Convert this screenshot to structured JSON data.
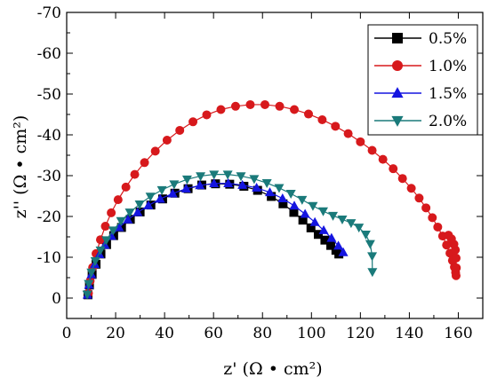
{
  "chart_data": {
    "type": "scatter",
    "xlabel": "z' (Ω • cm²)",
    "ylabel": "z'' (Ω • cm²)",
    "xlim": [
      0,
      170
    ],
    "ylim": [
      5,
      -70
    ],
    "xticks": [
      0,
      20,
      40,
      60,
      80,
      100,
      120,
      140,
      160
    ],
    "yticks": [
      0,
      -10,
      -20,
      -30,
      -40,
      -50,
      -60,
      -70
    ],
    "xtick_labels": [
      "0",
      "20",
      "40",
      "60",
      "80",
      "100",
      "120",
      "140",
      "160"
    ],
    "ytick_labels": [
      "0",
      "-10",
      "-20",
      "-30",
      "-40",
      "-50",
      "-60",
      "-70"
    ],
    "legend_position": "top-right",
    "grid": false,
    "series": [
      {
        "name": "0.5%",
        "color": "#000000",
        "marker": "square",
        "x": [
          8.7,
          9.3,
          10.4,
          12.0,
          14.0,
          16.3,
          19.2,
          22.4,
          26.0,
          30.0,
          34.4,
          39.2,
          44.2,
          49.6,
          55.2,
          60.8,
          66.6,
          72.4,
          78.0,
          83.6,
          88.4,
          92.8,
          96.5,
          99.8,
          102.8,
          105.5,
          107.9,
          110.0,
          111.2
        ],
        "y": [
          -0.8,
          -3.2,
          -5.8,
          -8.3,
          -10.8,
          -13.1,
          -15.3,
          -17.3,
          -19.3,
          -21.1,
          -22.8,
          -24.3,
          -25.7,
          -26.8,
          -27.7,
          -28.0,
          -27.9,
          -27.4,
          -26.4,
          -24.9,
          -23.1,
          -21.0,
          -19.1,
          -17.2,
          -15.6,
          -14.2,
          -12.9,
          -11.7,
          -10.8
        ]
      },
      {
        "name": "1.0%",
        "color": "#d7191c",
        "marker": "circle",
        "x": [
          8.9,
          9.6,
          10.6,
          12.0,
          13.8,
          15.8,
          18.2,
          21.0,
          24.2,
          27.8,
          31.8,
          36.2,
          41.0,
          46.2,
          51.6,
          57.2,
          63.0,
          69.0,
          75.0,
          81.0,
          87.0,
          93.0,
          98.8,
          104.4,
          109.8,
          115.0,
          120.0,
          124.8,
          129.2,
          133.4,
          137.2,
          140.8,
          144.0,
          146.8,
          149.4,
          151.6,
          153.6,
          155.2,
          156.6,
          157.6,
          158.4,
          158.9,
          159.1,
          159.2,
          159.1,
          158.8,
          158.2,
          157.2,
          156.0
        ],
        "y": [
          -1.2,
          -4.2,
          -7.5,
          -10.9,
          -14.3,
          -17.6,
          -20.9,
          -24.1,
          -27.2,
          -30.3,
          -33.2,
          -36.0,
          -38.7,
          -41.1,
          -43.2,
          -44.9,
          -46.2,
          -47.0,
          -47.4,
          -47.4,
          -47.0,
          -46.2,
          -45.1,
          -43.7,
          -42.1,
          -40.3,
          -38.3,
          -36.2,
          -34.0,
          -31.7,
          -29.3,
          -26.9,
          -24.5,
          -22.1,
          -19.7,
          -17.4,
          -15.2,
          -13.0,
          -11.0,
          -9.2,
          -7.6,
          -6.3,
          -5.5,
          -7.4,
          -9.8,
          -11.8,
          -13.2,
          -14.5,
          -15.4
        ]
      },
      {
        "name": "1.5%",
        "color": "#1515e0",
        "marker": "triangle-up",
        "x": [
          8.5,
          9.1,
          10.1,
          11.5,
          13.4,
          15.6,
          18.3,
          21.4,
          25.0,
          29.0,
          33.4,
          38.2,
          43.3,
          48.8,
          54.4,
          60.2,
          66.0,
          71.8,
          77.6,
          83.0,
          88.2,
          93.0,
          97.4,
          101.4,
          105.0,
          108.2,
          111.0,
          113.0
        ],
        "y": [
          -0.8,
          -3.2,
          -5.8,
          -8.3,
          -10.7,
          -13.0,
          -15.2,
          -17.3,
          -19.2,
          -21.0,
          -22.7,
          -24.3,
          -25.6,
          -26.8,
          -27.6,
          -28.1,
          -28.1,
          -27.7,
          -27.0,
          -25.9,
          -24.4,
          -22.6,
          -20.6,
          -18.6,
          -16.6,
          -14.7,
          -12.8,
          -11.2
        ]
      },
      {
        "name": "2.0%",
        "color": "#1a7a7a",
        "marker": "triangle-down",
        "x": [
          8.4,
          9.0,
          10.1,
          11.7,
          13.8,
          16.2,
          19.0,
          22.2,
          25.8,
          29.8,
          34.2,
          38.9,
          43.9,
          49.2,
          54.7,
          60.2,
          65.8,
          71.2,
          76.6,
          81.8,
          86.8,
          91.6,
          96.2,
          100.6,
          104.8,
          108.8,
          112.6,
          116.2,
          119.4,
          122.2,
          124.0,
          124.8,
          124.9
        ],
        "y": [
          -0.9,
          -3.5,
          -6.3,
          -9.1,
          -11.7,
          -14.2,
          -16.6,
          -18.9,
          -21.0,
          -23.0,
          -24.9,
          -26.5,
          -27.9,
          -29.1,
          -29.9,
          -30.3,
          -30.3,
          -29.9,
          -29.2,
          -28.2,
          -27.0,
          -25.6,
          -24.1,
          -22.6,
          -21.3,
          -20.2,
          -19.3,
          -18.4,
          -17.3,
          -15.6,
          -13.3,
          -10.3,
          -6.4
        ]
      }
    ]
  }
}
